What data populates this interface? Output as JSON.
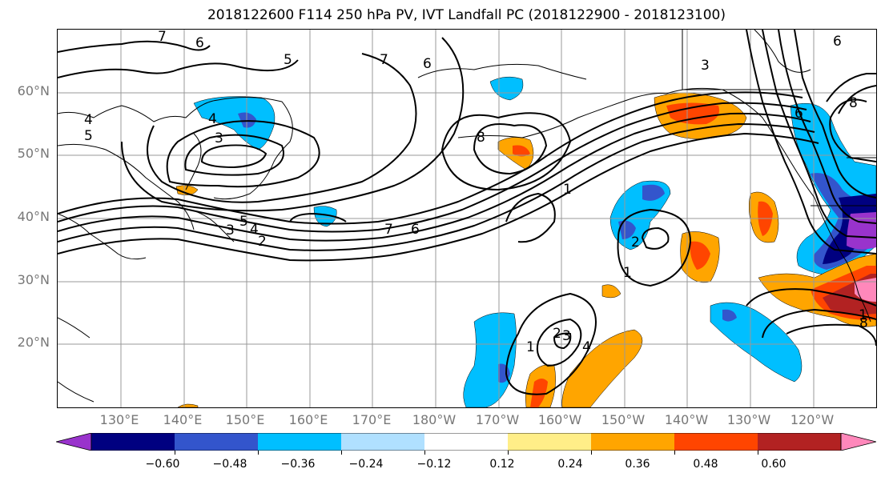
{
  "title": "2018122600 F114 250 hPa PV, IVT Landfall PC (2018122900 - 2018123100)",
  "lat_labels": [
    "60°N",
    "50°N",
    "40°N",
    "30°N",
    "20°N"
  ],
  "lon_labels": [
    "130°E",
    "140°E",
    "150°E",
    "160°E",
    "170°E",
    "180°W",
    "170°W",
    "160°W",
    "150°W",
    "140°W",
    "130°W",
    "120°W"
  ],
  "colorbar": {
    "ticks": [
      "−0.60",
      "−0.48",
      "−0.36",
      "−0.24",
      "−0.12",
      "0.12",
      "0.24",
      "0.36",
      "0.48",
      "0.60"
    ],
    "colors": [
      "#9933cc",
      "#000080",
      "#3355cc",
      "#00bfff",
      "#b0e0ff",
      "#ffffff",
      "#ffee88",
      "#ffa500",
      "#ff4500",
      "#b22222",
      "#ff88bb"
    ]
  },
  "pv_contour_labels": [
    "7",
    "6",
    "5",
    "7",
    "6",
    "3",
    "6",
    "4",
    "5",
    "4",
    "3",
    "8",
    "1",
    "5",
    "4",
    "3",
    "2",
    "7",
    "6",
    "2",
    "1",
    "2",
    "3",
    "4",
    "1",
    "8",
    "6",
    "1",
    "8"
  ],
  "map_region": {
    "lon_range": [
      120,
      -110
    ],
    "lat_range": [
      10,
      70
    ]
  }
}
